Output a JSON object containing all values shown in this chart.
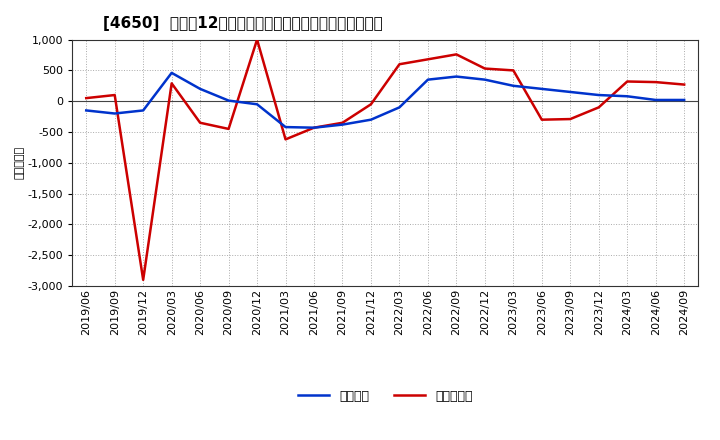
{
  "title": "[4650]  利益だ12か月移動合計の対前年同期増減額の推移",
  "ylabel": "（百万円）",
  "ylim": [
    -3000,
    1000
  ],
  "yticks": [
    -3000,
    -2500,
    -2000,
    -1500,
    -1000,
    -500,
    0,
    500,
    1000
  ],
  "background_color": "#ffffff",
  "plot_bg_color": "#ffffff",
  "grid_color": "#aaaaaa",
  "legend_labels": [
    "経常利益",
    "当期純利益"
  ],
  "line_colors": [
    "#0033cc",
    "#cc0000"
  ],
  "x_labels": [
    "2019/06",
    "2019/09",
    "2019/12",
    "2020/03",
    "2020/06",
    "2020/09",
    "2020/12",
    "2021/03",
    "2021/06",
    "2021/09",
    "2021/12",
    "2022/03",
    "2022/06",
    "2022/09",
    "2022/12",
    "2023/03",
    "2023/06",
    "2023/09",
    "2023/12",
    "2024/03",
    "2024/06",
    "2024/09"
  ],
  "keijo_rieki": [
    -150,
    -200,
    -150,
    460,
    200,
    10,
    -50,
    -420,
    -430,
    -380,
    -300,
    -100,
    350,
    400,
    350,
    250,
    200,
    150,
    100,
    80,
    20,
    20
  ],
  "touki_jurieki": [
    50,
    100,
    -2900,
    290,
    -350,
    -450,
    1000,
    -620,
    -430,
    -350,
    -50,
    600,
    680,
    760,
    530,
    500,
    -300,
    -290,
    -100,
    320,
    310,
    270
  ],
  "linewidth": 1.8,
  "title_fontsize": 11,
  "tick_fontsize": 8,
  "ylabel_fontsize": 8,
  "legend_fontsize": 9
}
